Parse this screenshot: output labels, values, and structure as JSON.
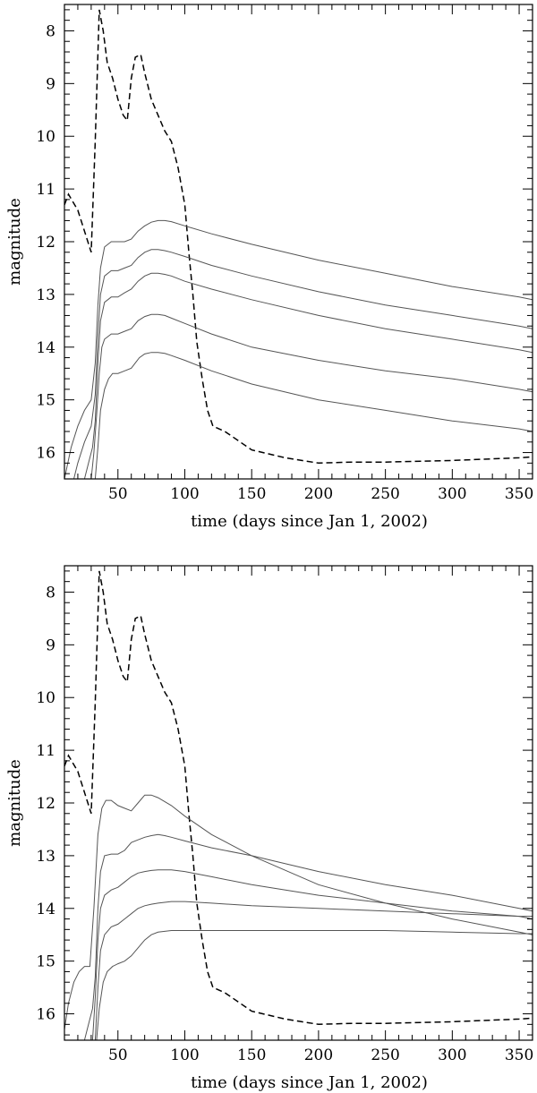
{
  "chart_data": [
    {
      "type": "line",
      "xlabel": "time (days since Jan 1, 2002)",
      "ylabel": "magnitude",
      "xlim": [
        10,
        360
      ],
      "ylim": [
        16.5,
        7.5
      ],
      "y_inverted": true,
      "x_ticks": [
        50,
        100,
        150,
        200,
        250,
        300,
        350
      ],
      "y_ticks": [
        8,
        9,
        10,
        11,
        12,
        13,
        14,
        15,
        16
      ],
      "grid": false,
      "series": [
        {
          "style": "dashed",
          "x": [
            10,
            13,
            20,
            25,
            30,
            33,
            36,
            39,
            42,
            46,
            50,
            54,
            57,
            60,
            63,
            67,
            70,
            75,
            80,
            85,
            90,
            95,
            100,
            103,
            106,
            109,
            113,
            117,
            121,
            130,
            150,
            175,
            200,
            225,
            250,
            300,
            350,
            360
          ],
          "y": [
            11.3,
            11.1,
            11.4,
            11.8,
            12.2,
            10.1,
            7.6,
            8.0,
            8.6,
            8.9,
            9.3,
            9.6,
            9.7,
            8.9,
            8.5,
            8.45,
            8.8,
            9.3,
            9.6,
            9.9,
            10.1,
            10.6,
            11.3,
            12.2,
            13.0,
            13.9,
            14.6,
            15.2,
            15.5,
            15.6,
            15.95,
            16.1,
            16.2,
            16.18,
            16.18,
            16.15,
            16.1,
            16.08
          ]
        },
        {
          "style": "solid",
          "x": [
            10,
            15,
            20,
            25,
            30,
            33,
            35,
            37,
            40,
            45,
            50,
            55,
            60,
            65,
            70,
            75,
            80,
            85,
            90,
            100,
            120,
            150,
            200,
            250,
            300,
            350,
            360
          ],
          "y": [
            16.5,
            15.9,
            15.5,
            15.2,
            15.0,
            14.3,
            13.2,
            12.5,
            12.1,
            12.0,
            12.0,
            12.0,
            11.95,
            11.8,
            11.7,
            11.63,
            11.6,
            11.6,
            11.62,
            11.7,
            11.85,
            12.05,
            12.35,
            12.6,
            12.85,
            13.05,
            13.1
          ]
        },
        {
          "style": "solid",
          "x": [
            17,
            20,
            25,
            30,
            33,
            35,
            37,
            40,
            45,
            50,
            55,
            60,
            65,
            70,
            75,
            80,
            85,
            90,
            100,
            120,
            150,
            200,
            250,
            300,
            350,
            360
          ],
          "y": [
            16.5,
            16.2,
            15.8,
            15.5,
            14.9,
            13.8,
            13.0,
            12.65,
            12.55,
            12.55,
            12.5,
            12.45,
            12.3,
            12.2,
            12.15,
            12.15,
            12.17,
            12.2,
            12.28,
            12.45,
            12.65,
            12.95,
            13.2,
            13.4,
            13.6,
            13.65
          ]
        },
        {
          "style": "solid",
          "x": [
            25,
            28,
            31,
            33,
            35,
            37,
            40,
            45,
            50,
            55,
            60,
            65,
            70,
            75,
            80,
            85,
            90,
            100,
            120,
            150,
            200,
            250,
            300,
            350,
            360
          ],
          "y": [
            16.5,
            16.2,
            15.9,
            15.4,
            14.3,
            13.5,
            13.15,
            13.05,
            13.05,
            12.97,
            12.9,
            12.75,
            12.65,
            12.6,
            12.6,
            12.62,
            12.65,
            12.75,
            12.9,
            13.1,
            13.4,
            13.65,
            13.85,
            14.05,
            14.1
          ]
        },
        {
          "style": "solid",
          "x": [
            30,
            32,
            34,
            36,
            38,
            40,
            45,
            50,
            55,
            60,
            65,
            70,
            75,
            80,
            85,
            90,
            100,
            120,
            150,
            200,
            250,
            300,
            350,
            360
          ],
          "y": [
            16.5,
            16.0,
            15.3,
            14.5,
            14.0,
            13.85,
            13.75,
            13.75,
            13.7,
            13.65,
            13.5,
            13.42,
            13.38,
            13.38,
            13.4,
            13.45,
            13.55,
            13.75,
            14.0,
            14.25,
            14.45,
            14.6,
            14.8,
            14.85
          ]
        },
        {
          "style": "solid",
          "x": [
            33,
            35,
            37,
            40,
            43,
            46,
            50,
            55,
            60,
            63,
            66,
            70,
            75,
            80,
            85,
            90,
            100,
            120,
            150,
            200,
            250,
            300,
            350,
            360
          ],
          "y": [
            16.5,
            15.9,
            15.2,
            14.8,
            14.6,
            14.5,
            14.5,
            14.45,
            14.4,
            14.3,
            14.2,
            14.13,
            14.1,
            14.1,
            14.12,
            14.16,
            14.25,
            14.45,
            14.7,
            15.0,
            15.2,
            15.4,
            15.55,
            15.6
          ]
        }
      ]
    },
    {
      "type": "line",
      "xlabel": "time (days since Jan 1, 2002)",
      "ylabel": "magnitude",
      "xlim": [
        10,
        360
      ],
      "ylim": [
        16.5,
        7.5
      ],
      "y_inverted": true,
      "x_ticks": [
        50,
        100,
        150,
        200,
        250,
        300,
        350
      ],
      "y_ticks": [
        8,
        9,
        10,
        11,
        12,
        13,
        14,
        15,
        16
      ],
      "grid": false,
      "series": [
        {
          "style": "dashed",
          "x": [
            10,
            13,
            20,
            25,
            30,
            33,
            36,
            39,
            42,
            46,
            50,
            54,
            57,
            60,
            63,
            67,
            70,
            75,
            80,
            85,
            90,
            95,
            100,
            103,
            106,
            109,
            113,
            117,
            121,
            130,
            150,
            175,
            200,
            225,
            250,
            300,
            350,
            360
          ],
          "y": [
            11.3,
            11.1,
            11.4,
            11.8,
            12.2,
            10.1,
            7.6,
            8.0,
            8.6,
            8.9,
            9.3,
            9.6,
            9.7,
            8.9,
            8.5,
            8.45,
            8.8,
            9.3,
            9.6,
            9.9,
            10.1,
            10.6,
            11.3,
            12.2,
            13.0,
            13.9,
            14.6,
            15.2,
            15.5,
            15.6,
            15.95,
            16.1,
            16.2,
            16.18,
            16.18,
            16.15,
            16.1,
            16.08
          ]
        },
        {
          "style": "solid",
          "x": [
            10,
            13,
            17,
            21,
            25,
            29,
            32,
            35,
            38,
            41,
            45,
            50,
            55,
            60,
            65,
            70,
            75,
            80,
            90,
            100,
            120,
            150,
            200,
            250,
            300,
            350,
            360
          ],
          "y": [
            16.3,
            15.8,
            15.4,
            15.2,
            15.1,
            15.1,
            14.0,
            12.6,
            12.1,
            11.95,
            11.95,
            12.05,
            12.1,
            12.15,
            12.0,
            11.85,
            11.85,
            11.9,
            12.05,
            12.25,
            12.6,
            13.0,
            13.55,
            13.9,
            14.2,
            14.45,
            14.5
          ]
        },
        {
          "style": "solid",
          "x": [
            25,
            28,
            31,
            33,
            35,
            37,
            40,
            45,
            50,
            55,
            60,
            65,
            70,
            75,
            80,
            85,
            90,
            100,
            120,
            150,
            200,
            250,
            300,
            350,
            360
          ],
          "y": [
            16.5,
            16.2,
            15.9,
            15.3,
            14.0,
            13.3,
            13.0,
            12.97,
            12.97,
            12.9,
            12.75,
            12.7,
            12.65,
            12.62,
            12.6,
            12.62,
            12.65,
            12.72,
            12.85,
            13.0,
            13.3,
            13.55,
            13.75,
            14.0,
            14.05
          ]
        },
        {
          "style": "solid",
          "x": [
            31,
            33,
            35,
            37,
            40,
            45,
            50,
            55,
            60,
            65,
            70,
            75,
            80,
            90,
            100,
            120,
            150,
            200,
            250,
            300,
            350,
            360
          ],
          "y": [
            16.5,
            15.7,
            14.6,
            14.0,
            13.75,
            13.65,
            13.6,
            13.5,
            13.4,
            13.33,
            13.3,
            13.28,
            13.27,
            13.27,
            13.3,
            13.4,
            13.55,
            13.75,
            13.9,
            14.05,
            14.15,
            14.2
          ]
        },
        {
          "style": "solid",
          "x": [
            33,
            35,
            37,
            40,
            45,
            50,
            55,
            60,
            65,
            70,
            75,
            80,
            90,
            100,
            120,
            150,
            200,
            250,
            300,
            350,
            360
          ],
          "y": [
            16.5,
            15.5,
            14.8,
            14.5,
            14.35,
            14.3,
            14.2,
            14.1,
            14.0,
            13.95,
            13.92,
            13.9,
            13.87,
            13.87,
            13.9,
            13.95,
            14.0,
            14.05,
            14.1,
            14.15,
            14.15
          ]
        },
        {
          "style": "solid",
          "x": [
            34,
            36,
            39,
            42,
            46,
            50,
            55,
            60,
            65,
            70,
            75,
            80,
            90,
            100,
            120,
            150,
            200,
            250,
            300,
            350,
            360
          ],
          "y": [
            16.5,
            15.9,
            15.4,
            15.2,
            15.1,
            15.05,
            15.0,
            14.9,
            14.75,
            14.6,
            14.5,
            14.45,
            14.42,
            14.42,
            14.42,
            14.42,
            14.42,
            14.42,
            14.45,
            14.48,
            14.48
          ]
        }
      ]
    }
  ]
}
